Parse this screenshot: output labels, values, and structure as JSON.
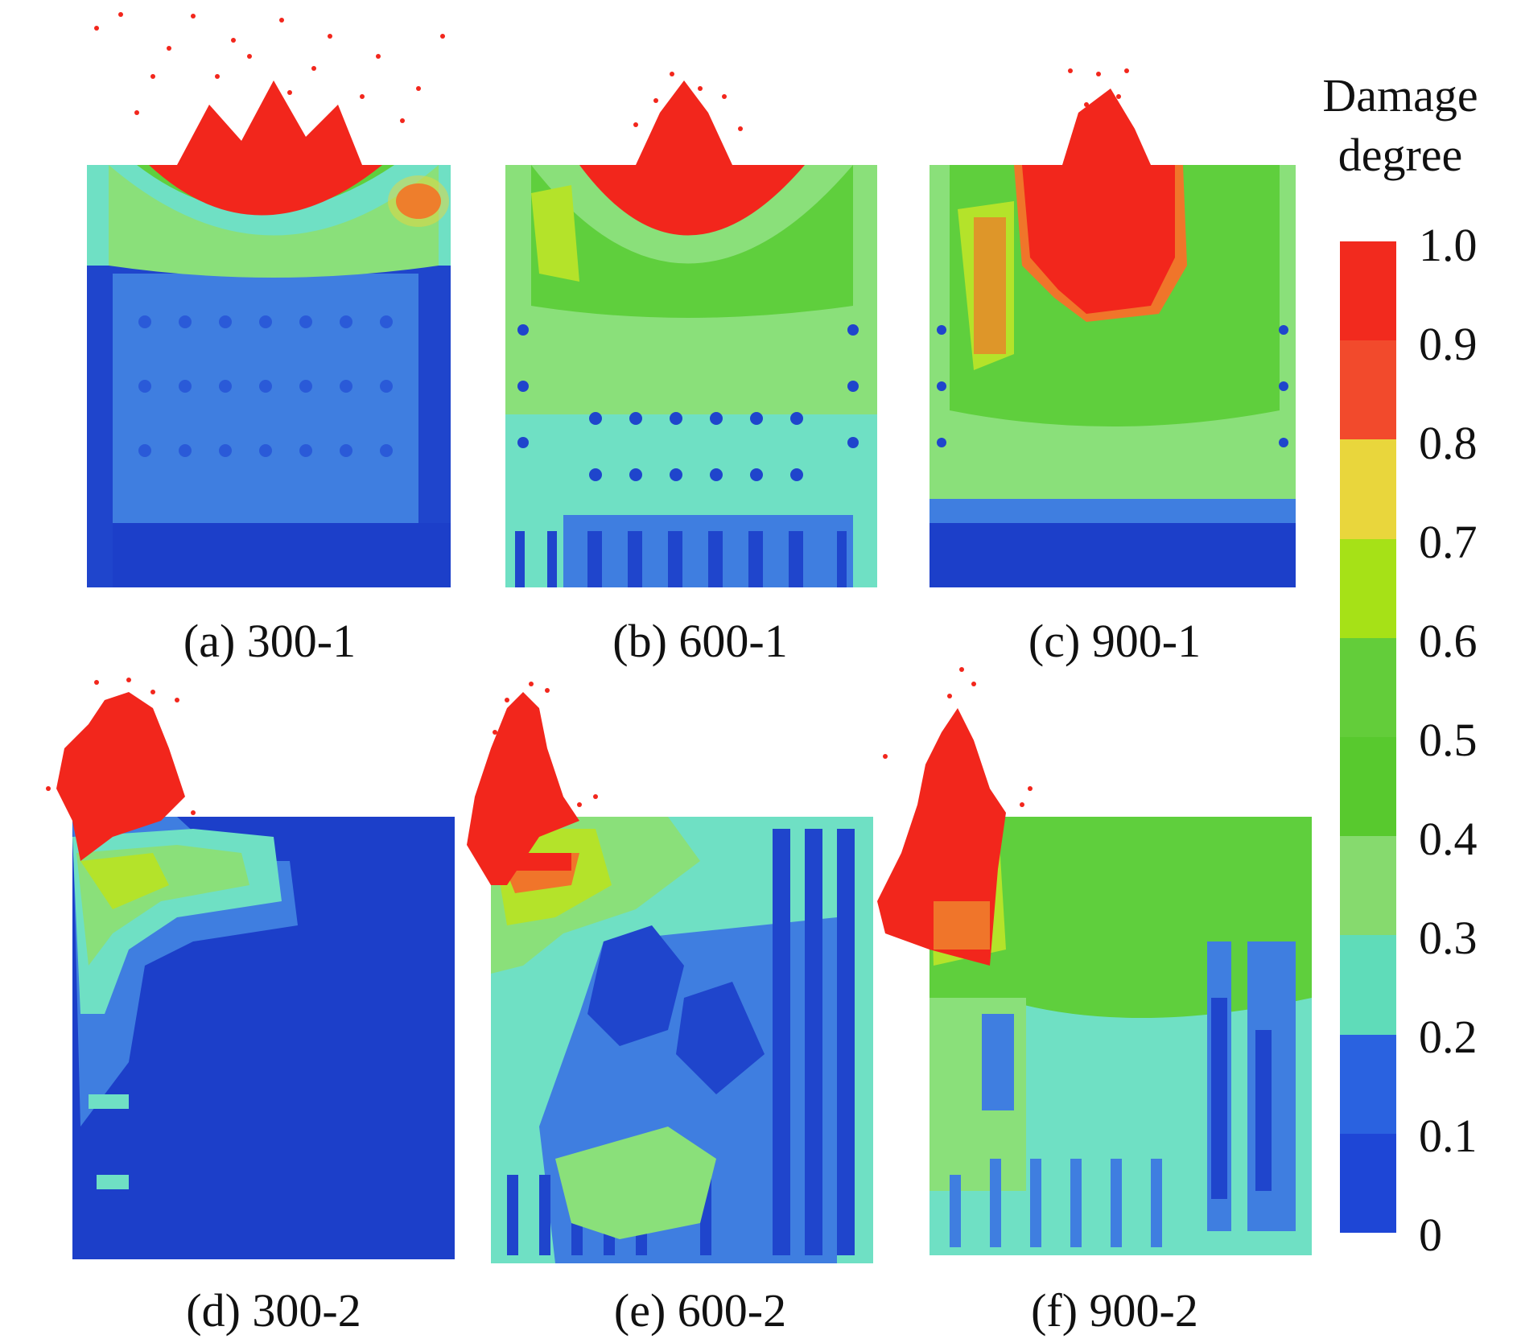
{
  "panels": [
    {
      "id": "a",
      "caption": "(a) 300-1"
    },
    {
      "id": "b",
      "caption": "(b) 600-1"
    },
    {
      "id": "c",
      "caption": "(c) 900-1"
    },
    {
      "id": "d",
      "caption": "(d) 300-2"
    },
    {
      "id": "e",
      "caption": "(e) 600-2"
    },
    {
      "id": "f",
      "caption": "(f) 900-2"
    }
  ],
  "legend": {
    "title_line1": "Damage",
    "title_line2": "degree",
    "ticks": [
      "1.0",
      "0.9",
      "0.8",
      "0.7",
      "0.6",
      "0.5",
      "0.4",
      "0.3",
      "0.2",
      "0.1",
      "0"
    ],
    "colors_top_to_bottom": [
      "#f22a1e",
      "#f24a2c",
      "#e9d63c",
      "#a6e117",
      "#63cd3a",
      "#58c92e",
      "#86da6e",
      "#5fdcb9",
      "#2a62e0",
      "#1e46d6"
    ]
  },
  "palette": {
    "deep_blue": "#1c3fc9",
    "mid_blue": "#3f7ee0",
    "cyan": "#6fe0c4",
    "light_green": "#8ae07a",
    "green": "#5fcf3d",
    "yellow_green": "#b4e32a",
    "orange": "#f0752a",
    "red": "#f2261c"
  }
}
